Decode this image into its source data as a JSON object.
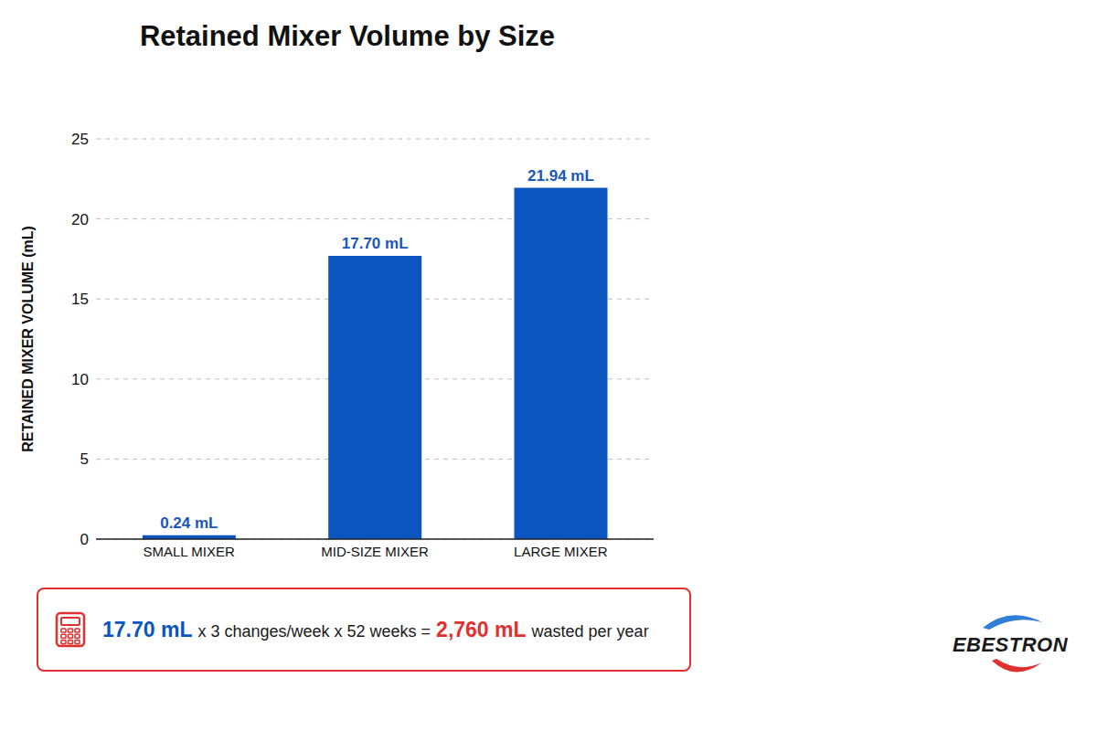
{
  "chart_data": {
    "type": "bar",
    "title": "Retained Mixer Volume by Size",
    "y_label": "RETAINED MIXER VOLUME (mL)",
    "categories": [
      "SMALL MIXER",
      "MID-SIZE MIXER",
      "LARGE MIXER"
    ],
    "values": [
      0.24,
      17.7,
      21.94
    ],
    "value_labels": [
      "0.24 mL",
      "17.70 mL",
      "21.94 mL"
    ],
    "color": "#0a55c0",
    "ylim": [
      0,
      25
    ],
    "yticks": [
      0,
      5,
      10,
      15,
      20,
      25
    ],
    "grid": true,
    "data_labels": true,
    "annotation": [
      "17.70 mL",
      "x 3 changes/week x 52 weeks =",
      "2,760 mL",
      "wasted per year"
    ],
    "logo": "EBESTRON"
  }
}
